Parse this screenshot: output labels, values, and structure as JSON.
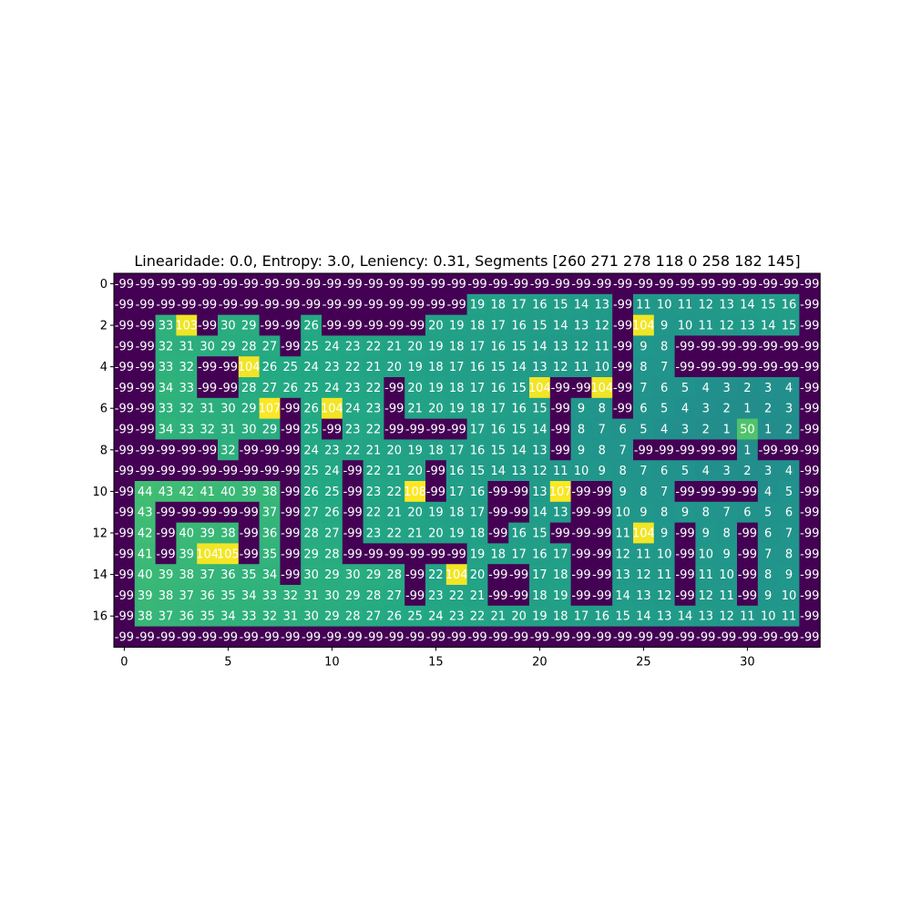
{
  "chart_data": {
    "type": "heatmap",
    "title": "Linearidade: 0.0, Entropy: 3.0, Leniency: 0.31, Segments [260 271 278 118   0 258 182 145]",
    "xlabel": "",
    "ylabel": "",
    "colormap": "viridis",
    "vmin": -99,
    "vmax": 108,
    "x_ticks": [
      0,
      5,
      10,
      15,
      20,
      25,
      30
    ],
    "y_ticks": [
      0,
      2,
      4,
      6,
      8,
      10,
      12,
      14,
      16
    ],
    "rows": 18,
    "cols": 34,
    "values": [
      [
        -99,
        -99,
        -99,
        -99,
        -99,
        -99,
        -99,
        -99,
        -99,
        -99,
        -99,
        -99,
        -99,
        -99,
        -99,
        -99,
        -99,
        -99,
        -99,
        -99,
        -99,
        -99,
        -99,
        -99,
        -99,
        -99,
        -99,
        -99,
        -99,
        -99,
        -99,
        -99,
        -99,
        -99
      ],
      [
        -99,
        -99,
        -99,
        -99,
        -99,
        -99,
        -99,
        -99,
        -99,
        -99,
        -99,
        -99,
        -99,
        -99,
        -99,
        -99,
        -99,
        19,
        18,
        17,
        16,
        15,
        14,
        13,
        -99,
        11,
        10,
        11,
        12,
        13,
        14,
        15,
        16,
        -99
      ],
      [
        -99,
        -99,
        33,
        103,
        -99,
        30,
        29,
        -99,
        -99,
        26,
        -99,
        -99,
        -99,
        -99,
        -99,
        20,
        19,
        18,
        17,
        16,
        15,
        14,
        13,
        12,
        -99,
        104,
        9,
        10,
        11,
        12,
        13,
        14,
        15,
        -99
      ],
      [
        -99,
        -99,
        32,
        31,
        30,
        29,
        28,
        27,
        -99,
        25,
        24,
        23,
        22,
        21,
        20,
        19,
        18,
        17,
        16,
        15,
        14,
        13,
        12,
        11,
        -99,
        9,
        8,
        -99,
        -99,
        -99,
        -99,
        -99,
        -99,
        -99
      ],
      [
        -99,
        -99,
        33,
        32,
        -99,
        -99,
        104,
        26,
        25,
        24,
        23,
        22,
        21,
        20,
        19,
        18,
        17,
        16,
        15,
        14,
        13,
        12,
        11,
        10,
        -99,
        8,
        7,
        -99,
        -99,
        -99,
        -99,
        -99,
        -99,
        -99
      ],
      [
        -99,
        -99,
        34,
        33,
        -99,
        -99,
        28,
        27,
        26,
        25,
        24,
        23,
        22,
        -99,
        20,
        19,
        18,
        17,
        16,
        15,
        104,
        -99,
        -99,
        104,
        -99,
        7,
        6,
        5,
        4,
        3,
        2,
        3,
        4,
        -99
      ],
      [
        -99,
        -99,
        33,
        32,
        31,
        30,
        29,
        107,
        -99,
        26,
        104,
        24,
        23,
        -99,
        21,
        20,
        19,
        18,
        17,
        16,
        15,
        -99,
        9,
        8,
        -99,
        6,
        5,
        4,
        3,
        2,
        1,
        2,
        3,
        -99
      ],
      [
        -99,
        -99,
        34,
        33,
        32,
        31,
        30,
        29,
        -99,
        25,
        -99,
        23,
        22,
        -99,
        -99,
        -99,
        -99,
        17,
        16,
        15,
        14,
        -99,
        8,
        7,
        6,
        5,
        4,
        3,
        2,
        1,
        50,
        1,
        2,
        -99
      ],
      [
        -99,
        -99,
        -99,
        -99,
        -99,
        32,
        -99,
        -99,
        -99,
        24,
        23,
        22,
        21,
        20,
        19,
        18,
        17,
        16,
        15,
        14,
        13,
        -99,
        9,
        8,
        7,
        -99,
        -99,
        -99,
        -99,
        -99,
        1,
        -99,
        -99,
        -99
      ],
      [
        -99,
        -99,
        -99,
        -99,
        -99,
        -99,
        -99,
        -99,
        -99,
        25,
        24,
        -99,
        22,
        21,
        20,
        -99,
        16,
        15,
        14,
        13,
        12,
        11,
        10,
        9,
        8,
        7,
        6,
        5,
        4,
        3,
        2,
        3,
        4,
        -99
      ],
      [
        -99,
        44,
        43,
        42,
        41,
        40,
        39,
        38,
        -99,
        26,
        25,
        -99,
        23,
        22,
        108,
        -99,
        17,
        16,
        -99,
        -99,
        13,
        107,
        -99,
        -99,
        9,
        8,
        7,
        -99,
        -99,
        -99,
        -99,
        4,
        5,
        -99
      ],
      [
        -99,
        43,
        -99,
        -99,
        -99,
        -99,
        -99,
        37,
        -99,
        27,
        26,
        -99,
        22,
        21,
        20,
        19,
        18,
        17,
        -99,
        -99,
        14,
        13,
        -99,
        -99,
        10,
        9,
        8,
        9,
        8,
        7,
        6,
        5,
        6,
        -99
      ],
      [
        -99,
        42,
        -99,
        40,
        39,
        38,
        -99,
        36,
        -99,
        28,
        27,
        -99,
        23,
        22,
        21,
        20,
        19,
        18,
        -99,
        16,
        15,
        -99,
        -99,
        -99,
        11,
        104,
        9,
        -99,
        9,
        8,
        -99,
        6,
        7,
        -99
      ],
      [
        -99,
        41,
        -99,
        39,
        104,
        105,
        -99,
        35,
        -99,
        29,
        28,
        -99,
        -99,
        -99,
        -99,
        -99,
        -99,
        19,
        18,
        17,
        16,
        17,
        -99,
        -99,
        12,
        11,
        10,
        -99,
        10,
        9,
        -99,
        7,
        8,
        -99
      ],
      [
        -99,
        40,
        39,
        38,
        37,
        36,
        35,
        34,
        -99,
        30,
        29,
        30,
        29,
        28,
        -99,
        22,
        104,
        20,
        -99,
        -99,
        17,
        18,
        -99,
        -99,
        13,
        12,
        11,
        -99,
        11,
        10,
        -99,
        8,
        9,
        -99
      ],
      [
        -99,
        39,
        38,
        37,
        36,
        35,
        34,
        33,
        32,
        31,
        30,
        29,
        28,
        27,
        -99,
        23,
        22,
        21,
        -99,
        -99,
        18,
        19,
        -99,
        -99,
        14,
        13,
        12,
        -99,
        12,
        11,
        -99,
        9,
        10,
        -99
      ],
      [
        -99,
        38,
        37,
        36,
        35,
        34,
        33,
        32,
        31,
        30,
        29,
        28,
        27,
        26,
        25,
        24,
        23,
        22,
        21,
        20,
        19,
        18,
        17,
        16,
        15,
        14,
        13,
        14,
        13,
        12,
        11,
        10,
        11,
        -99
      ],
      [
        -99,
        -99,
        -99,
        -99,
        -99,
        -99,
        -99,
        -99,
        -99,
        -99,
        -99,
        -99,
        -99,
        -99,
        -99,
        -99,
        -99,
        -99,
        -99,
        -99,
        -99,
        -99,
        -99,
        -99,
        -99,
        -99,
        -99,
        -99,
        -99,
        -99,
        -99,
        -99,
        -99,
        -99
      ]
    ]
  }
}
